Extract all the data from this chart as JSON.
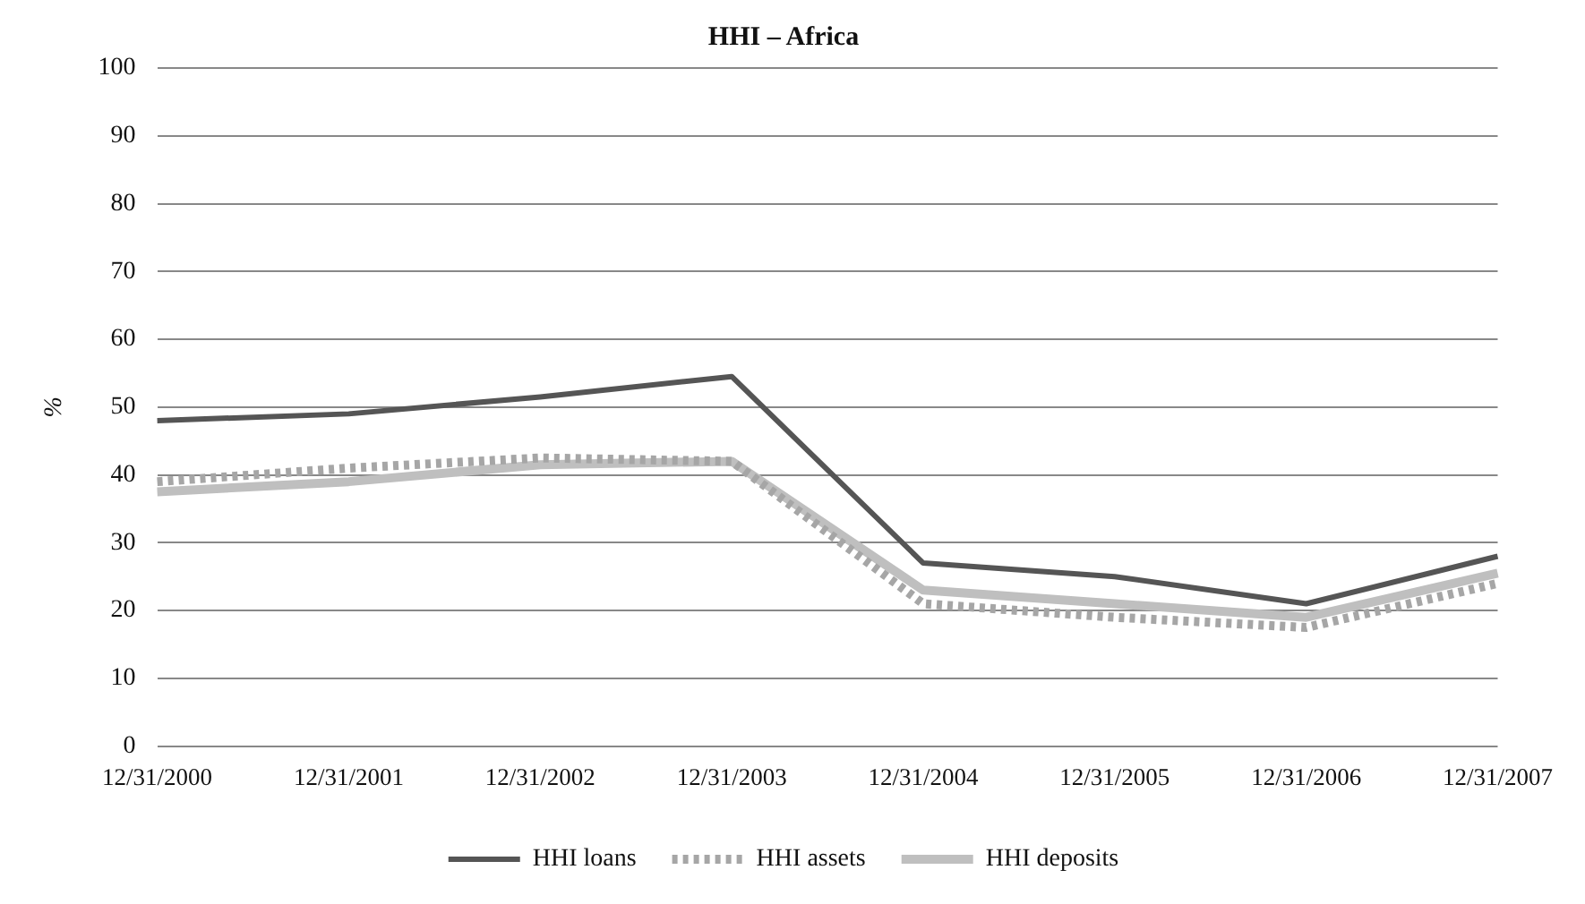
{
  "chart_data": {
    "type": "line",
    "title": "HHI – Africa",
    "ylabel": "%",
    "categories": [
      "12/31/2000",
      "12/31/2001",
      "12/31/2002",
      "12/31/2003",
      "12/31/2004",
      "12/31/2005",
      "12/31/2006",
      "12/31/2007"
    ],
    "series": [
      {
        "name": "HHI loans",
        "color": "#555555",
        "line_style": "solid",
        "values": [
          48,
          49,
          51.5,
          54.5,
          27,
          25,
          21,
          28
        ]
      },
      {
        "name": "HHI assets",
        "color": "#a6a6a6",
        "line_style": "dotted",
        "values": [
          39,
          41,
          42.5,
          42,
          21,
          19,
          17.5,
          24
        ]
      },
      {
        "name": "HHI deposits",
        "color": "#bfbfbf",
        "line_style": "solid",
        "values": [
          37.5,
          39,
          41.5,
          42,
          23,
          21,
          19,
          25.5
        ]
      }
    ],
    "ylim": [
      0,
      100
    ],
    "yticks": [
      0,
      10,
      20,
      30,
      40,
      50,
      60,
      70,
      80,
      90,
      100
    ],
    "grid": "y",
    "legend": "bottom",
    "marker": "none"
  }
}
